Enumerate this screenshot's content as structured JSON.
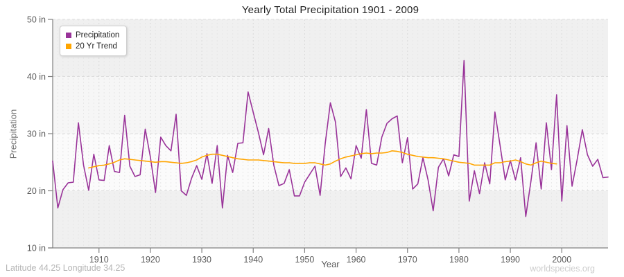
{
  "title": "Yearly Total Precipitation 1901 - 2009",
  "footer": {
    "location": "Latitude 44.25 Longitude 34.25",
    "watermark": "worldspecies.org"
  },
  "axes": {
    "y_title": "Precipitation",
    "x_title": "Year",
    "y_tick_labels": [
      "10 in",
      "20 in",
      "30 in",
      "40 in",
      "50 in"
    ],
    "x_tick_labels": [
      "1910",
      "1920",
      "1930",
      "1940",
      "1950",
      "1960",
      "1970",
      "1980",
      "1990",
      "2000"
    ]
  },
  "chart_data": {
    "type": "line",
    "title": "Yearly Total Precipitation 1901 - 2009",
    "xlabel": "Year",
    "ylabel": "Precipitation",
    "y_unit": "in",
    "xlim": [
      1901,
      2009
    ],
    "ylim": [
      10,
      50
    ],
    "x_ticks": [
      1910,
      1920,
      1930,
      1940,
      1950,
      1960,
      1970,
      1980,
      1990,
      2000
    ],
    "y_ticks": [
      10,
      20,
      30,
      40,
      50
    ],
    "grid": "yearly dashed vertical minor gridlines, dashed horizontal gridlines at 20/30/40, alternating band fills",
    "legend_position": "top-left",
    "series": [
      {
        "name": "Precipitation",
        "color": "#993399",
        "start_year": 1901,
        "values": [
          25.2,
          17.0,
          20.2,
          21.4,
          21.5,
          31.9,
          24.5,
          20.1,
          26.4,
          21.9,
          21.8,
          27.9,
          23.4,
          23.2,
          33.2,
          24.3,
          22.5,
          22.8,
          30.8,
          25.9,
          19.7,
          29.4,
          27.9,
          27.0,
          33.4,
          20.0,
          19.2,
          22.2,
          24.4,
          22.0,
          26.5,
          21.3,
          27.9,
          17.0,
          26.2,
          23.2,
          28.3,
          28.4,
          37.3,
          33.7,
          30.2,
          26.3,
          30.9,
          24.5,
          20.9,
          21.3,
          23.7,
          19.1,
          19.1,
          21.5,
          22.9,
          24.3,
          19.2,
          28.3,
          35.4,
          32.0,
          22.5,
          24.0,
          22.1,
          27.9,
          25.7,
          34.2,
          24.8,
          24.5,
          29.4,
          31.8,
          32.6,
          33.1,
          24.9,
          29.3,
          20.3,
          21.2,
          25.8,
          21.9,
          16.5,
          24.1,
          25.6,
          22.6,
          26.3,
          26.0,
          42.8,
          18.2,
          23.5,
          19.5,
          24.9,
          21.2,
          33.8,
          27.9,
          21.9,
          25.3,
          21.9,
          25.8,
          15.5,
          21.7,
          28.4,
          20.3,
          31.9,
          23.7,
          36.8,
          18.2,
          31.4,
          20.8,
          25.5,
          30.7,
          26.3,
          24.3,
          25.5,
          22.3,
          22.4
        ]
      },
      {
        "name": "20 Yr Trend",
        "color": "#FFA500",
        "start_year": 1908,
        "values": [
          24.0,
          24.2,
          24.4,
          24.5,
          24.7,
          25.0,
          25.4,
          25.6,
          25.5,
          25.4,
          25.3,
          25.2,
          25.1,
          25.0,
          25.1,
          25.1,
          25.0,
          24.9,
          24.8,
          24.9,
          25.1,
          25.4,
          25.9,
          26.2,
          26.4,
          26.4,
          26.2,
          26.0,
          25.8,
          25.6,
          25.5,
          25.4,
          25.4,
          25.4,
          25.3,
          25.2,
          25.1,
          25.0,
          24.9,
          24.9,
          24.8,
          24.8,
          24.8,
          24.9,
          24.9,
          24.7,
          24.5,
          24.7,
          25.2,
          25.6,
          25.9,
          26.1,
          26.3,
          26.5,
          26.6,
          26.5,
          26.6,
          26.6,
          26.7,
          27.0,
          26.9,
          26.7,
          26.4,
          26.2,
          26.0,
          25.9,
          25.8,
          25.8,
          25.7,
          25.6,
          25.4,
          25.2,
          25.0,
          24.9,
          24.8,
          24.5,
          24.5,
          24.5,
          24.5,
          24.9,
          24.9,
          25.1,
          25.2,
          25.4,
          25.1,
          24.7,
          24.5,
          24.9,
          25.2,
          25.0,
          24.8,
          24.7
        ]
      }
    ]
  }
}
